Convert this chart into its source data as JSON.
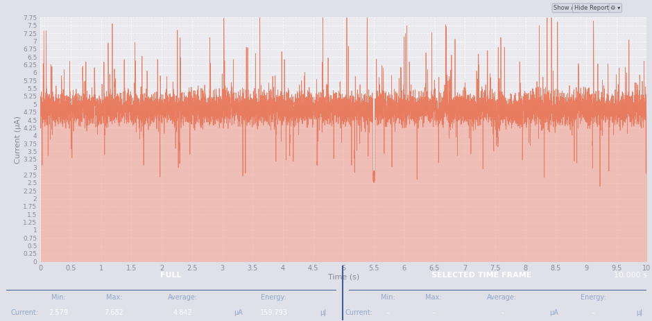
{
  "title": "",
  "xlabel": "Time (s)",
  "ylabel": "Current (μA)",
  "xlim": [
    0,
    10
  ],
  "ylim": [
    0,
    7.75
  ],
  "yticks": [
    0,
    0.25,
    0.5,
    0.75,
    1.0,
    1.25,
    1.5,
    1.75,
    2.0,
    2.25,
    2.5,
    2.75,
    3.0,
    3.25,
    3.5,
    3.75,
    4.0,
    4.25,
    4.5,
    4.75,
    5.0,
    5.25,
    5.5,
    5.75,
    6.0,
    6.25,
    6.5,
    6.75,
    7.0,
    7.25,
    7.5,
    7.75
  ],
  "xticks": [
    0,
    0.5,
    1.0,
    1.5,
    2.0,
    2.5,
    3.0,
    3.5,
    4.0,
    4.5,
    5.0,
    5.5,
    6.0,
    6.5,
    7.0,
    7.5,
    8.0,
    8.5,
    9.0,
    9.5,
    10.0
  ],
  "bg_color": "#e0e0e8",
  "plot_bg_color": "#eaeaef",
  "line_color": "#e8785a",
  "line_fill_color": "#f0a090",
  "line_width": 0.55,
  "avg_current": 4.842,
  "min_current": 2.579,
  "max_current": 7.682,
  "energy": 159.793,
  "time_window": 10.0,
  "table_bg_color": "#16245c",
  "table_text_color": "#ffffff",
  "table_label_color": "#8fa8cc",
  "grid_color": "#ffffff",
  "tick_color": "#888899"
}
